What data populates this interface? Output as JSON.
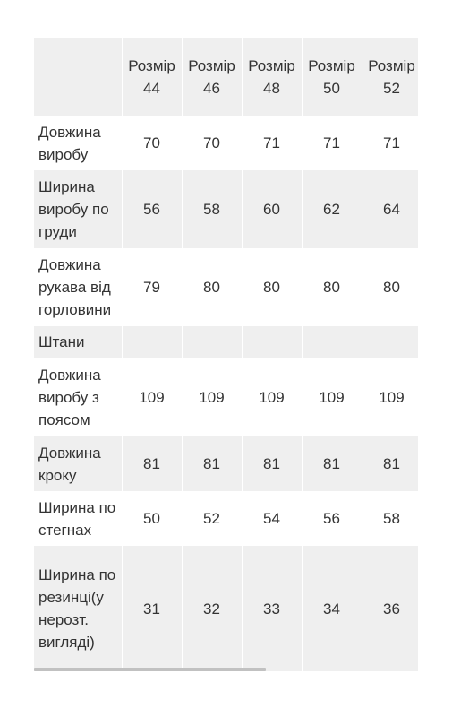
{
  "table": {
    "header": [
      "",
      "Розмір 44",
      "Розмір 46",
      "Розмір 48",
      "Розмір 50",
      "Розмір 52"
    ],
    "rows": [
      {
        "label": "Довжина виробу",
        "values": [
          "70",
          "70",
          "71",
          "71",
          "71"
        ]
      },
      {
        "label": "Ширина виробу по груди",
        "values": [
          "56",
          "58",
          "60",
          "62",
          "64"
        ]
      },
      {
        "label": "Довжина рукава від горловини",
        "values": [
          "79",
          "80",
          "80",
          "80",
          "80"
        ]
      },
      {
        "label": "Штани",
        "values": [
          "",
          "",
          "",
          "",
          ""
        ]
      },
      {
        "label": "Довжина виробу з поясом",
        "values": [
          "109",
          "109",
          "109",
          "109",
          "109"
        ]
      },
      {
        "label": "Довжина кроку",
        "values": [
          "81",
          "81",
          "81",
          "81",
          "81"
        ]
      },
      {
        "label": "Ширина по стегнах",
        "values": [
          "50",
          "52",
          "54",
          "56",
          "58"
        ]
      },
      {
        "label": "Ширина по резинці(у нерозт. вигляді)",
        "values": [
          "31",
          "32",
          "33",
          "34",
          "36"
        ]
      }
    ]
  },
  "colors": {
    "row_shade": "#efefef",
    "row_white": "#ffffff",
    "text": "#333333",
    "scrollbar": "#c1c1c1"
  }
}
